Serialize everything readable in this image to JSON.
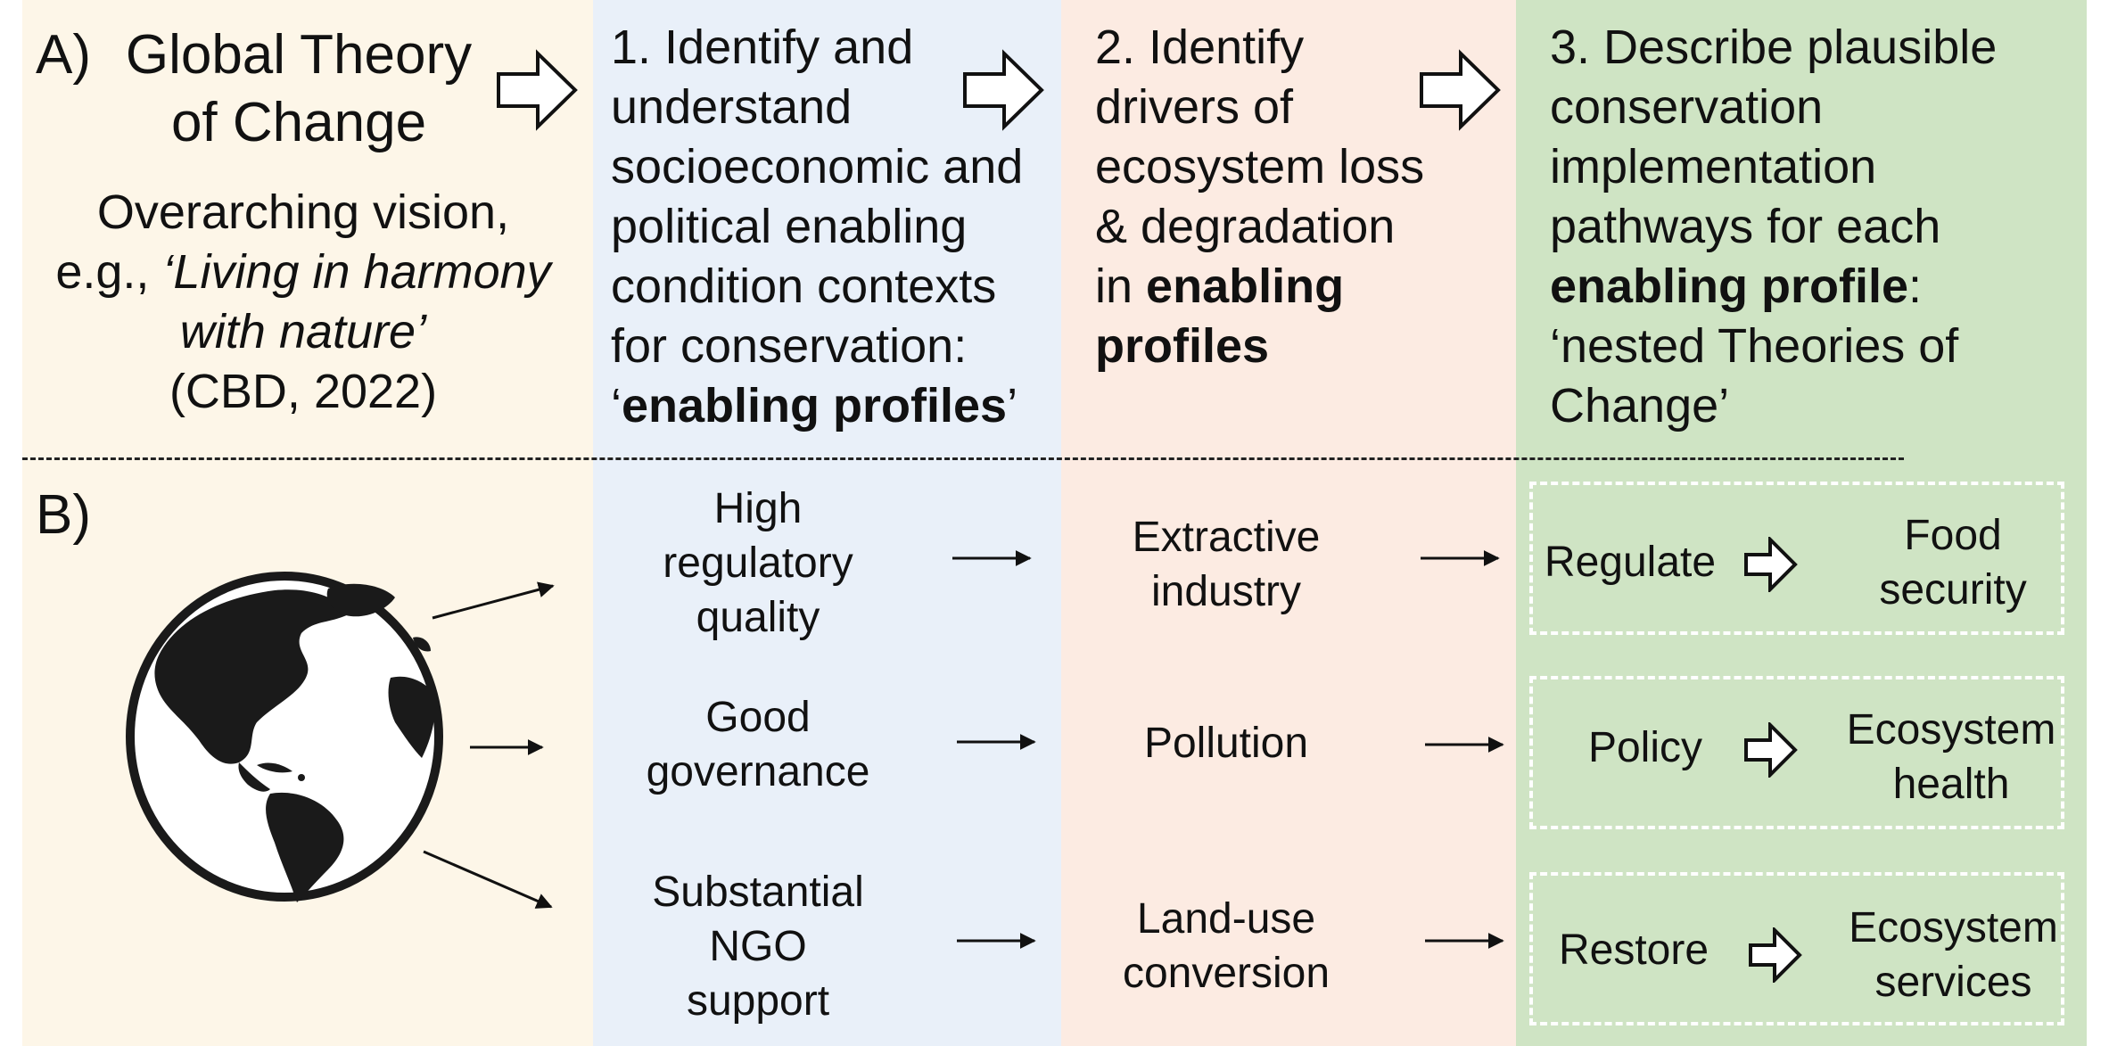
{
  "panel_a": {
    "label": "A)",
    "title_line1": "Global Theory",
    "title_line2": "of Change",
    "vision_line1": "Overarching vision,",
    "vision_prefix": "e.g., ",
    "vision_quote_line1": "‘Living in harmony",
    "vision_quote_line2": "with nature’",
    "vision_citation": "(CBD, 2022)"
  },
  "step1": {
    "lines": [
      "1. Identify and",
      "understand",
      "socioeconomic and",
      "political enabling",
      "condition contexts",
      "for conservation:"
    ],
    "open_quote": "‘",
    "bold_term": "enabling profiles",
    "close_quote": "’"
  },
  "step2": {
    "lines": [
      "2. Identify",
      "drivers of",
      "ecosystem loss",
      "& degradation"
    ],
    "prefix": "in ",
    "bold_line1": "enabling",
    "bold_line2": "profiles"
  },
  "step3": {
    "lines": [
      "3. Describe plausible",
      "conservation",
      "implementation",
      "pathways for each"
    ],
    "bold_term": "enabling profile",
    "bold_suffix": ":",
    "tail_line1": "‘nested Theories of",
    "tail_line2": "Change’"
  },
  "panel_b": {
    "label": "B)",
    "globe_icon": "globe-americas-icon",
    "rows": [
      {
        "enabling_lines": [
          "High",
          "regulatory",
          "quality"
        ],
        "driver_lines": [
          "Extractive",
          "industry"
        ],
        "action": "Regulate",
        "outcome_lines": [
          "Food",
          "security"
        ]
      },
      {
        "enabling_lines": [
          "Good",
          "governance"
        ],
        "driver_lines": [
          "Pollution"
        ],
        "action": "Policy",
        "outcome_lines": [
          "Ecosystem",
          "health"
        ]
      },
      {
        "enabling_lines": [
          "Substantial",
          "NGO",
          "support"
        ],
        "driver_lines": [
          "Land-use",
          "conversion"
        ],
        "action": "Restore",
        "outcome_lines": [
          "Ecosystem",
          "services"
        ]
      }
    ]
  },
  "colors": {
    "global_bg": "#fdf6e8",
    "enabling_bg": "#e9f0f9",
    "drivers_bg": "#fcebe2",
    "pathways_bg": "#cfe4c4"
  }
}
